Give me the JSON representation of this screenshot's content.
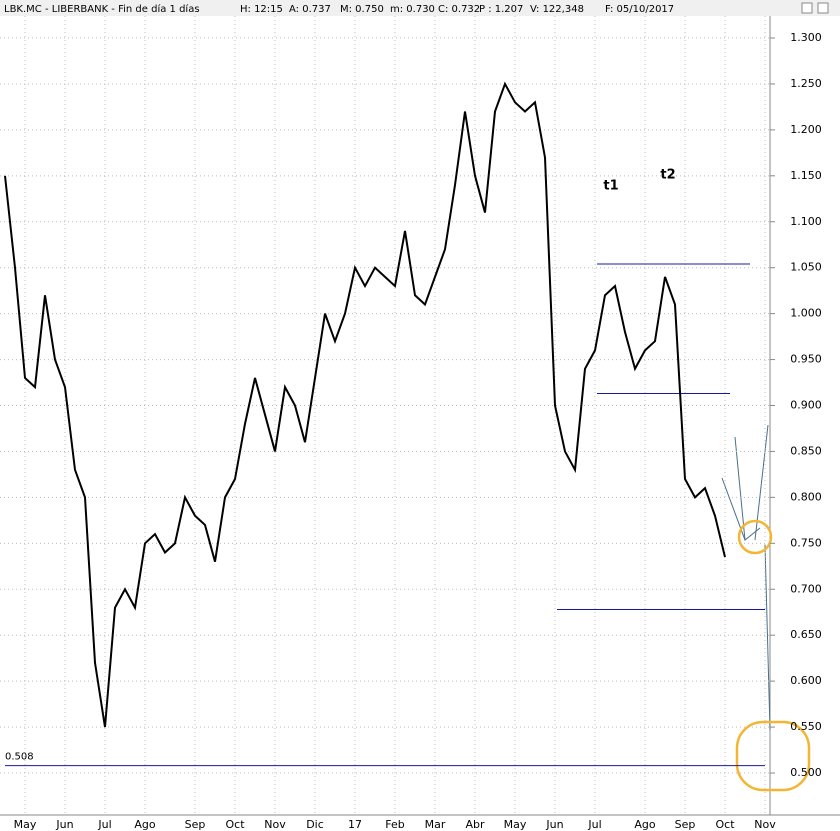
{
  "chart_data": {
    "type": "line",
    "header": [
      "LBK.MC - LIBERBANK - Fin de día 1 días",
      "H: 12:15",
      "A: 0.737",
      "M: 0.750",
      "m: 0.730",
      "C: 0.732",
      "P : 1.207",
      "V: 122,348",
      "F: 05/10/2017"
    ],
    "categories": [
      null,
      null,
      "May",
      null,
      null,
      null,
      "Jun",
      null,
      null,
      null,
      "Jul",
      null,
      null,
      null,
      "Ago",
      null,
      null,
      null,
      null,
      "Sep",
      null,
      null,
      null,
      "Oct",
      null,
      null,
      null,
      "Nov",
      null,
      null,
      null,
      "Dic",
      null,
      null,
      null,
      "17",
      null,
      null,
      null,
      "Feb",
      null,
      null,
      null,
      "Mar",
      null,
      null,
      null,
      "Abr",
      null,
      null,
      null,
      "May",
      null,
      null,
      null,
      "Jun",
      null,
      null,
      null,
      "Jul",
      null,
      null,
      null,
      null,
      "Ago",
      null,
      null,
      null,
      "Sep",
      null,
      null,
      null,
      "Oct",
      null,
      null,
      null,
      "Nov"
    ],
    "series": [
      {
        "name": "LBK.MC",
        "color": "#000000",
        "values": [
          1.15,
          1.05,
          0.93,
          0.92,
          1.02,
          0.95,
          0.92,
          0.83,
          0.8,
          0.62,
          0.55,
          0.68,
          0.7,
          0.68,
          0.75,
          0.76,
          0.74,
          0.75,
          0.8,
          0.78,
          0.77,
          0.73,
          0.8,
          0.82,
          0.88,
          0.93,
          0.89,
          0.85,
          0.92,
          0.9,
          0.86,
          0.93,
          1.0,
          0.97,
          1.0,
          1.05,
          1.03,
          1.05,
          1.04,
          1.03,
          1.09,
          1.02,
          1.01,
          1.04,
          1.07,
          1.14,
          1.22,
          1.15,
          1.11,
          1.22,
          1.25,
          1.23,
          1.22,
          1.23,
          1.17,
          0.9,
          0.85,
          0.83,
          0.94,
          0.96,
          1.02,
          1.03,
          0.98,
          0.94,
          0.96,
          0.97,
          1.04,
          1.01,
          0.82,
          0.8,
          0.81,
          0.78,
          0.735,
          null,
          null,
          null,
          null
        ]
      }
    ],
    "ylim": [
      0.48,
      1.33
    ],
    "yticks": [
      {
        "value": 0.5,
        "label": "0.500"
      },
      {
        "value": 0.55,
        "label": "0.550"
      },
      {
        "value": 0.6,
        "label": "0.600"
      },
      {
        "value": 0.65,
        "label": "0.650"
      },
      {
        "value": 0.7,
        "label": "0.700"
      },
      {
        "value": 0.75,
        "label": "0.750"
      },
      {
        "value": 0.8,
        "label": "0.800"
      },
      {
        "value": 0.85,
        "label": "0.850"
      },
      {
        "value": 0.9,
        "label": "0.900"
      },
      {
        "value": 0.95,
        "label": "0.950"
      },
      {
        "value": 1.0,
        "label": "1.000"
      },
      {
        "value": 1.05,
        "label": "1.050"
      },
      {
        "value": 1.1,
        "label": "1.100"
      },
      {
        "value": 1.15,
        "label": "1.150"
      },
      {
        "value": 1.2,
        "label": "1.200"
      },
      {
        "value": 1.25,
        "label": "1.250"
      },
      {
        "value": 1.3,
        "label": "1.300"
      }
    ],
    "levels": [
      1.054,
      0.913,
      0.678,
      0.508
    ],
    "annotations": [
      "t1",
      "t2"
    ],
    "grid": true
  }
}
